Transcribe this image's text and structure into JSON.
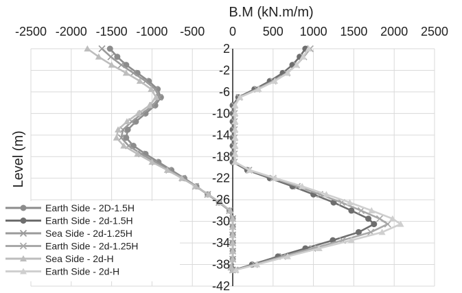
{
  "chart_data": {
    "type": "line",
    "title": "",
    "xlabel": "B.M (kN.m/m)",
    "ylabel": "Level (m)",
    "x_ticks": [
      -2500,
      -2000,
      -1500,
      -1000,
      -500,
      0,
      500,
      1000,
      1500,
      2000,
      2500
    ],
    "x_tick_labels": [
      "-2500",
      "-2000",
      "-1500",
      "-1000",
      "-500",
      "0",
      "500",
      "1000",
      "1500",
      "2000",
      "2500"
    ],
    "y_ticks": [
      2,
      -2,
      -6,
      -10,
      -14,
      -18,
      -22,
      -26,
      -30,
      -34,
      -38,
      -42
    ],
    "y_tick_labels": [
      "2",
      "-2",
      "-6",
      "-10",
      "-14",
      "-18",
      "-22",
      "-26",
      "-30",
      "-34",
      "-38",
      "-42"
    ],
    "xlim": [
      -2500,
      2500
    ],
    "ylim": [
      -42,
      2
    ],
    "grid": true,
    "legend_position": "bottom-left",
    "series": [
      {
        "name": "Earth Side - 2D-1.5H",
        "color": "#8c8c8c",
        "marker": "circle",
        "points": [
          [
            -1520,
            2
          ],
          [
            -1430,
            0.5
          ],
          [
            -1320,
            -1
          ],
          [
            -1180,
            -2.5
          ],
          [
            -1040,
            -4
          ],
          [
            -930,
            -5.5
          ],
          [
            -890,
            -7
          ],
          [
            -960,
            -8.5
          ],
          [
            -1080,
            -10
          ],
          [
            -1200,
            -11.5
          ],
          [
            -1300,
            -13
          ],
          [
            -1320,
            -14.5
          ],
          [
            -1230,
            -16
          ],
          [
            -1080,
            -17.5
          ],
          [
            -920,
            -19
          ],
          [
            -760,
            -20.5
          ],
          [
            -600,
            -22
          ],
          [
            -450,
            -23.5
          ],
          [
            -310,
            -25
          ],
          [
            -170,
            -26.5
          ],
          [
            -40,
            -28
          ],
          [
            0,
            -29.5
          ],
          [
            0,
            -31
          ],
          [
            0,
            -32.5
          ],
          [
            0,
            -34
          ],
          [
            0,
            -35.5
          ],
          [
            0,
            -37
          ],
          [
            -20,
            -38.5
          ],
          [
            0,
            -39
          ]
        ]
      },
      {
        "name": "Earth Side - 2d-1.5H",
        "color": "#6e6e6e",
        "marker": "circle",
        "points": [
          [
            900,
            2
          ],
          [
            830,
            0.5
          ],
          [
            740,
            -1
          ],
          [
            620,
            -2.5
          ],
          [
            460,
            -4
          ],
          [
            270,
            -5.5
          ],
          [
            70,
            -7
          ],
          [
            0,
            -8.5
          ],
          [
            0,
            -10
          ],
          [
            0,
            -11.5
          ],
          [
            0,
            -13
          ],
          [
            0,
            -14.5
          ],
          [
            0,
            -16
          ],
          [
            0,
            -17.5
          ],
          [
            0,
            -19
          ],
          [
            180,
            -20.5
          ],
          [
            460,
            -22
          ],
          [
            740,
            -23.5
          ],
          [
            1000,
            -25
          ],
          [
            1250,
            -26.5
          ],
          [
            1470,
            -28
          ],
          [
            1680,
            -29.5
          ],
          [
            1750,
            -30.5
          ],
          [
            1560,
            -32
          ],
          [
            1240,
            -33.5
          ],
          [
            900,
            -35
          ],
          [
            560,
            -36.5
          ],
          [
            240,
            -38
          ],
          [
            20,
            -39
          ]
        ]
      },
      {
        "name": "Sea Side - 2d-1.25H",
        "color": "#9a9a9a",
        "marker": "x",
        "points": [
          [
            -1620,
            2
          ],
          [
            -1510,
            0.5
          ],
          [
            -1380,
            -1
          ],
          [
            -1230,
            -2.5
          ],
          [
            -1080,
            -4
          ],
          [
            -960,
            -5.5
          ],
          [
            -910,
            -7
          ],
          [
            -990,
            -8.5
          ],
          [
            -1120,
            -10
          ],
          [
            -1250,
            -11.5
          ],
          [
            -1360,
            -13
          ],
          [
            -1380,
            -14.5
          ],
          [
            -1290,
            -16
          ],
          [
            -1130,
            -17.5
          ],
          [
            -960,
            -19
          ],
          [
            -790,
            -20.5
          ],
          [
            -620,
            -22
          ],
          [
            -460,
            -23.5
          ],
          [
            -310,
            -25
          ],
          [
            -170,
            -26.5
          ],
          [
            -40,
            -28
          ],
          [
            0,
            -29.5
          ],
          [
            0,
            -31
          ],
          [
            0,
            -32.5
          ],
          [
            0,
            -34
          ],
          [
            0,
            -35.5
          ],
          [
            0,
            -37
          ],
          [
            -20,
            -38.5
          ],
          [
            0,
            -39
          ]
        ]
      },
      {
        "name": "Earth Side - 2d-1.25H",
        "color": "#a8a8a8",
        "marker": "x",
        "points": [
          [
            960,
            2
          ],
          [
            880,
            0.5
          ],
          [
            790,
            -1
          ],
          [
            670,
            -2.5
          ],
          [
            500,
            -4
          ],
          [
            300,
            -5.5
          ],
          [
            80,
            -7
          ],
          [
            20,
            -8.5
          ],
          [
            20,
            -10
          ],
          [
            20,
            -11.5
          ],
          [
            20,
            -13
          ],
          [
            20,
            -14.5
          ],
          [
            20,
            -16
          ],
          [
            20,
            -17.5
          ],
          [
            20,
            -19
          ],
          [
            200,
            -20.5
          ],
          [
            500,
            -22
          ],
          [
            800,
            -23.5
          ],
          [
            1080,
            -25
          ],
          [
            1350,
            -26.5
          ],
          [
            1590,
            -28
          ],
          [
            1820,
            -29.5
          ],
          [
            1920,
            -30.5
          ],
          [
            1710,
            -32
          ],
          [
            1360,
            -33.5
          ],
          [
            990,
            -35
          ],
          [
            620,
            -36.5
          ],
          [
            270,
            -38
          ],
          [
            30,
            -39
          ]
        ]
      },
      {
        "name": "Sea Side - 2d-H",
        "color": "#bdbdbd",
        "marker": "triangle",
        "points": [
          [
            -1800,
            2
          ],
          [
            -1660,
            0.5
          ],
          [
            -1500,
            -1
          ],
          [
            -1320,
            -2.5
          ],
          [
            -1150,
            -4
          ],
          [
            -1010,
            -5.5
          ],
          [
            -950,
            -7
          ],
          [
            -1030,
            -8.5
          ],
          [
            -1170,
            -10
          ],
          [
            -1310,
            -11.5
          ],
          [
            -1420,
            -13
          ],
          [
            -1440,
            -14.5
          ],
          [
            -1350,
            -16
          ],
          [
            -1180,
            -17.5
          ],
          [
            -1000,
            -19
          ],
          [
            -810,
            -20.5
          ],
          [
            -630,
            -22
          ],
          [
            -460,
            -23.5
          ],
          [
            -300,
            -25
          ],
          [
            -160,
            -26.5
          ],
          [
            -30,
            -28
          ],
          [
            0,
            -29.5
          ],
          [
            0,
            -31
          ],
          [
            0,
            -32.5
          ],
          [
            0,
            -34
          ],
          [
            0,
            -35.5
          ],
          [
            0,
            -37
          ],
          [
            -20,
            -38.5
          ],
          [
            0,
            -39
          ]
        ]
      },
      {
        "name": "Earth Side - 2d-H",
        "color": "#cfcfcf",
        "marker": "triangle",
        "points": [
          [
            940,
            2
          ],
          [
            870,
            0.5
          ],
          [
            790,
            -1
          ],
          [
            680,
            -2.5
          ],
          [
            520,
            -4
          ],
          [
            320,
            -5.5
          ],
          [
            90,
            -7
          ],
          [
            30,
            -8.5
          ],
          [
            30,
            -10
          ],
          [
            30,
            -11.5
          ],
          [
            30,
            -13
          ],
          [
            30,
            -14.5
          ],
          [
            30,
            -16
          ],
          [
            30,
            -17.5
          ],
          [
            30,
            -19
          ],
          [
            210,
            -20.5
          ],
          [
            530,
            -22
          ],
          [
            860,
            -23.5
          ],
          [
            1160,
            -25
          ],
          [
            1450,
            -26.5
          ],
          [
            1720,
            -28
          ],
          [
            1980,
            -29.5
          ],
          [
            2080,
            -30.5
          ],
          [
            1850,
            -32
          ],
          [
            1470,
            -33.5
          ],
          [
            1070,
            -35
          ],
          [
            680,
            -36.5
          ],
          [
            300,
            -38
          ],
          [
            40,
            -39
          ]
        ]
      }
    ]
  }
}
